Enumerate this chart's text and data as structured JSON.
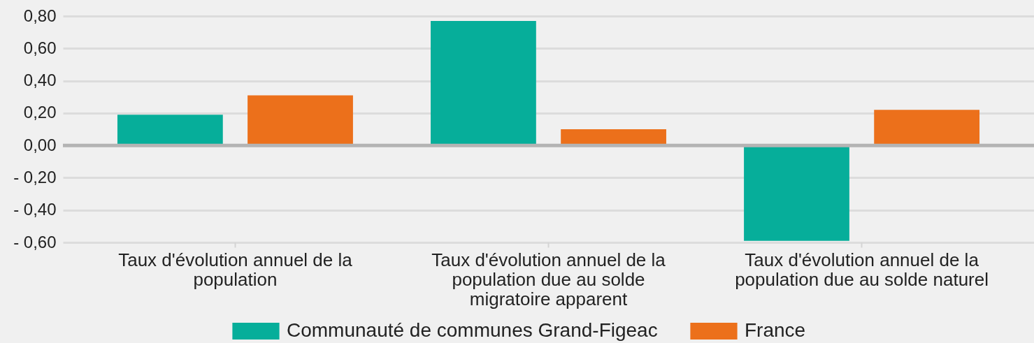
{
  "chart_data": {
    "type": "bar",
    "categories": [
      "Taux d'évolution annuel de la population",
      "Taux d'évolution annuel de la population due au solde migratoire apparent",
      "Taux d'évolution annuel de la population due au solde naturel"
    ],
    "series": [
      {
        "name": "Communauté de communes Grand-Figeac",
        "color": "#06ae9a",
        "values": [
          0.19,
          0.77,
          -0.59
        ]
      },
      {
        "name": "France",
        "color": "#ec701b",
        "values": [
          0.31,
          0.1,
          0.22
        ]
      }
    ],
    "ylim": [
      -0.6,
      0.8
    ],
    "yticks": [
      {
        "value": -0.6,
        "label": "- 0,60"
      },
      {
        "value": -0.4,
        "label": "- 0,40"
      },
      {
        "value": -0.2,
        "label": "- 0,20"
      },
      {
        "value": 0,
        "label": "0,00"
      },
      {
        "value": 0.2,
        "label": "0,20"
      },
      {
        "value": 0.4,
        "label": "0,40"
      },
      {
        "value": 0.6,
        "label": "0,60"
      },
      {
        "value": 0.8,
        "label": "0,80"
      }
    ],
    "grid": "y",
    "legend": "bottom",
    "ref_lines": [
      {
        "axis": "y",
        "value": 0,
        "color": "#b4b4b4"
      }
    ]
  }
}
